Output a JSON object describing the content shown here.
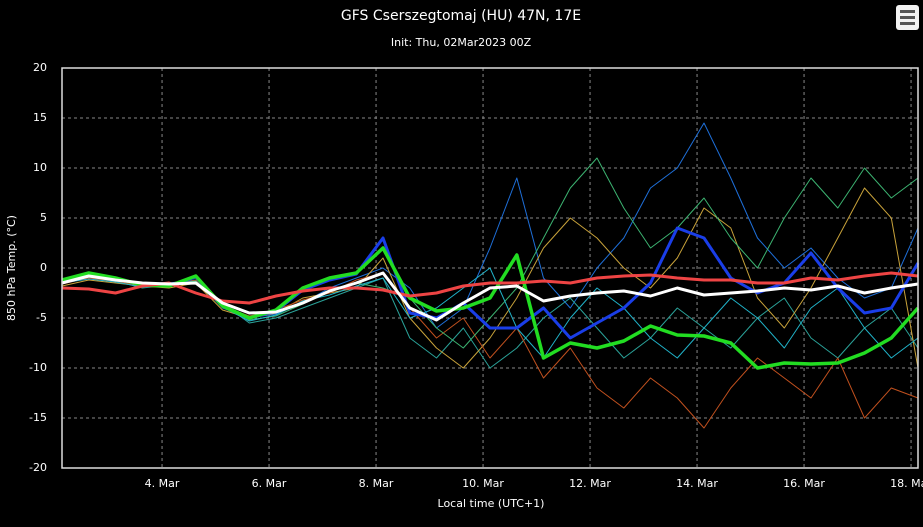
{
  "chart_data": {
    "type": "line",
    "title": "GFS Cserszegtomaj (HU) 47N, 17E",
    "subtitle": "Init: Thu, 02Mar2023 00Z",
    "x_label": "Local time (UTC+1)",
    "y_label": "850 hPa Temp. (°C)",
    "xlim": [
      2.13,
      18.13
    ],
    "xticks": [
      {
        "value": 4,
        "label": "4. Mar"
      },
      {
        "value": 6,
        "label": "6. Mar"
      },
      {
        "value": 8,
        "label": "8. Mar"
      },
      {
        "value": 10,
        "label": "10. Mar"
      },
      {
        "value": 12,
        "label": "12. Mar"
      },
      {
        "value": 14,
        "label": "14. Mar"
      },
      {
        "value": 16,
        "label": "16. Mar"
      },
      {
        "value": 18,
        "label": "18. Mar"
      }
    ],
    "ylim": [
      -20,
      20
    ],
    "yticks": [
      -20,
      -15,
      -10,
      -5,
      0,
      5,
      10,
      15,
      20
    ],
    "grid": true,
    "x": [
      2.13,
      2.63,
      3.13,
      3.63,
      4.13,
      4.63,
      5.13,
      5.63,
      6.13,
      6.63,
      7.13,
      7.63,
      8.13,
      8.63,
      9.13,
      9.63,
      10.13,
      10.63,
      11.13,
      11.63,
      12.13,
      12.63,
      13.13,
      13.63,
      14.13,
      14.63,
      15.13,
      15.63,
      16.13,
      16.63,
      17.13,
      17.63,
      18.13
    ],
    "series": [
      {
        "color": "#1e6fd9",
        "width": 1,
        "values": [
          -1.3,
          -0.7,
          -1.2,
          -1.6,
          -1.5,
          -1.2,
          -4,
          -5,
          -4.6,
          -3.5,
          -2,
          -1,
          0,
          -2,
          -6,
          -4,
          2,
          9,
          -1,
          -4,
          0,
          3,
          8,
          10,
          14.5,
          9,
          3,
          0,
          2,
          -1,
          -3,
          -2,
          4
        ]
      },
      {
        "color": "#2aa198",
        "width": 1,
        "values": [
          -1.5,
          -1,
          -1.3,
          -2,
          -1.7,
          -1,
          -3.5,
          -5.5,
          -5,
          -4,
          -3,
          -2,
          -1,
          -7,
          -9,
          -6,
          -10,
          -8,
          -5,
          -3,
          -6,
          -9,
          -7,
          -4,
          -6,
          -8,
          -5,
          -3,
          -7,
          -9,
          -6,
          -4,
          -8
        ]
      },
      {
        "color": "#c8a23a",
        "width": 1,
        "values": [
          -1.8,
          -1.2,
          -1.5,
          -1.8,
          -2,
          -1.5,
          -4.2,
          -5,
          -4.5,
          -3,
          -2.5,
          -2,
          1,
          -5,
          -8,
          -10,
          -7,
          -3,
          2,
          5,
          3,
          0,
          -2,
          1,
          6,
          4,
          -3,
          -6,
          -2,
          3,
          8,
          5,
          -10
        ]
      },
      {
        "color": "#c0501e",
        "width": 1,
        "values": [
          -1.6,
          -1,
          -1.4,
          -1.7,
          -1.8,
          -1.2,
          -3.8,
          -4.8,
          -4.2,
          -3.2,
          -2.5,
          -1.2,
          -0.5,
          -4,
          -7,
          -5,
          -9,
          -6,
          -11,
          -8,
          -12,
          -14,
          -11,
          -13,
          -16,
          -12,
          -9,
          -11,
          -13,
          -9,
          -15,
          -12,
          -13
        ]
      },
      {
        "color": "#3cb371",
        "width": 1,
        "values": [
          -1.4,
          -0.9,
          -1,
          -1.5,
          -1.6,
          -1.3,
          -3.6,
          -5.2,
          -4.8,
          -3.6,
          -2.2,
          -1.5,
          -2,
          -3,
          -6,
          -8,
          -5,
          -2,
          3,
          8,
          11,
          6,
          2,
          4,
          7,
          3,
          0,
          5,
          9,
          6,
          10,
          7,
          9
        ]
      },
      {
        "color": "#20b2c8",
        "width": 1,
        "values": [
          -1.5,
          -1.1,
          -1.4,
          -1.9,
          -1.6,
          -1.4,
          -3.9,
          -5.3,
          -4.7,
          -3.3,
          -2.7,
          -1.8,
          -1,
          -5,
          -4,
          -2,
          0,
          -6,
          -9,
          -5,
          -2,
          -4,
          -7,
          -9,
          -6,
          -3,
          -5,
          -8,
          -4,
          -2,
          -6,
          -9,
          -7
        ]
      },
      {
        "color": "#1a3ee8",
        "width": 3,
        "values": [
          -1.2,
          -0.6,
          -1,
          -1.7,
          -1.8,
          -0.9,
          -3.8,
          -5,
          -4.3,
          -2.2,
          -1.2,
          -0.6,
          3,
          -4.5,
          -5,
          -3.5,
          -6,
          -6,
          -4,
          -7,
          -5.5,
          -4,
          -1.5,
          4,
          3,
          -1,
          -2.5,
          -1.5,
          1.5,
          -2,
          -4.5,
          -4,
          0.5
        ]
      },
      {
        "color": "#22dd22",
        "width": 3.5,
        "values": [
          -1.2,
          -0.5,
          -1,
          -1.7,
          -1.8,
          -0.8,
          -3.8,
          -5,
          -4.2,
          -2,
          -1,
          -0.5,
          2,
          -3,
          -4.3,
          -4,
          -3,
          1.3,
          -9,
          -7.5,
          -8,
          -7.3,
          -5.8,
          -6.7,
          -6.8,
          -7.5,
          -10,
          -9.5,
          -9.6,
          -9.5,
          -8.5,
          -7,
          -4
        ]
      },
      {
        "color": "#ee4444",
        "width": 3,
        "values": [
          -2,
          -2.1,
          -2.5,
          -1.8,
          -1.5,
          -2.5,
          -3.3,
          -3.5,
          -2.8,
          -2.3,
          -2,
          -2,
          -2.2,
          -2.8,
          -2.5,
          -1.8,
          -1.5,
          -1.5,
          -1.3,
          -1.5,
          -1,
          -0.8,
          -0.7,
          -1,
          -1.2,
          -1.2,
          -1.5,
          -1.5,
          -1,
          -1.2,
          -0.8,
          -0.5,
          -0.8
        ]
      },
      {
        "color": "#ffffff",
        "width": 3,
        "values": [
          -1.5,
          -0.8,
          -1.2,
          -1.5,
          -1.6,
          -1.5,
          -3.5,
          -4.5,
          -4.4,
          -3.5,
          -2.3,
          -1.5,
          -0.5,
          -4,
          -5.2,
          -3.5,
          -2,
          -1.8,
          -3.3,
          -2.8,
          -2.5,
          -2.3,
          -2.8,
          -2,
          -2.7,
          -2.5,
          -2.3,
          -2,
          -2.2,
          -1.8,
          -2.5,
          -2,
          -1.6
        ]
      }
    ]
  }
}
